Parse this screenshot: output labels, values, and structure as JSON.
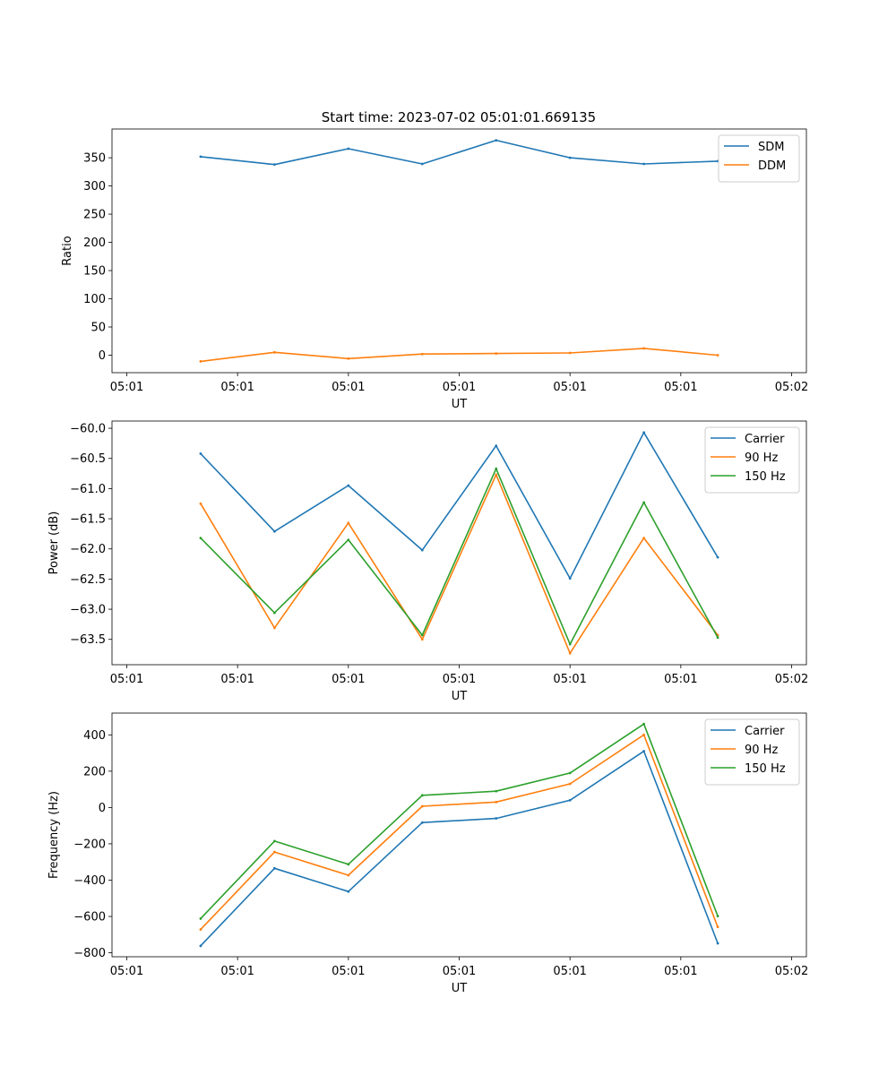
{
  "figure": {
    "title": "Start time: 2023-07-02 05:01:01.669135"
  },
  "chart_data": [
    {
      "type": "line",
      "title": "Start time: 2023-07-02 05:01:01.669135",
      "xlabel": "UT",
      "ylabel": "Ratio",
      "x": [
        0.5,
        1.0,
        1.5,
        2.0,
        2.5,
        3.0,
        3.5,
        4.0
      ],
      "xlim": [
        -0.1,
        4.6
      ],
      "xtick_positions": [
        0,
        0.75,
        1.5,
        2.25,
        3.0,
        3.75,
        4.5
      ],
      "xtick_labels": [
        "05:01",
        "05:01",
        "05:01",
        "05:01",
        "05:01",
        "05:01",
        "05:02"
      ],
      "ylim": [
        -31,
        401
      ],
      "yticks": [
        0,
        50,
        100,
        150,
        200,
        250,
        300,
        350
      ],
      "ytick_labels": [
        "0",
        "50",
        "100",
        "150",
        "200",
        "250",
        "300",
        "350"
      ],
      "legend": "top-right",
      "series": [
        {
          "name": "SDM",
          "color": "#1f77b4",
          "values": [
            352,
            338,
            366,
            339,
            381,
            350,
            339,
            344
          ]
        },
        {
          "name": "DDM",
          "color": "#ff7f0e",
          "values": [
            -11,
            5,
            -6,
            2,
            3,
            4,
            12,
            0
          ]
        }
      ]
    },
    {
      "type": "line",
      "title": "",
      "xlabel": "UT",
      "ylabel": "Power (dB)",
      "x": [
        0.5,
        1.0,
        1.5,
        2.0,
        2.5,
        3.0,
        3.5,
        4.0
      ],
      "xlim": [
        -0.1,
        4.6
      ],
      "xtick_positions": [
        0,
        0.75,
        1.5,
        2.25,
        3.0,
        3.75,
        4.5
      ],
      "xtick_labels": [
        "05:01",
        "05:01",
        "05:01",
        "05:01",
        "05:01",
        "05:01",
        "05:02"
      ],
      "ylim": [
        -63.92,
        -59.88
      ],
      "yticks": [
        -63.5,
        -63.0,
        -62.5,
        -62.0,
        -61.5,
        -61.0,
        -60.5,
        -60.0
      ],
      "ytick_labels": [
        "−63.5",
        "−63.0",
        "−62.5",
        "−62.0",
        "−61.5",
        "−61.0",
        "−60.5",
        "−60.0"
      ],
      "legend": "top-right",
      "series": [
        {
          "name": "Carrier",
          "color": "#1f77b4",
          "values": [
            -60.42,
            -61.71,
            -60.95,
            -62.02,
            -60.29,
            -62.49,
            -60.07,
            -62.14
          ]
        },
        {
          "name": "90 Hz",
          "color": "#ff7f0e",
          "values": [
            -61.25,
            -63.31,
            -61.57,
            -63.5,
            -60.77,
            -63.73,
            -61.82,
            -63.43
          ]
        },
        {
          "name": "150 Hz",
          "color": "#2ca02c",
          "values": [
            -61.82,
            -63.06,
            -61.85,
            -63.43,
            -60.67,
            -63.58,
            -61.23,
            -63.47
          ]
        }
      ]
    },
    {
      "type": "line",
      "title": "",
      "xlabel": "UT",
      "ylabel": "Frequency (Hz)",
      "x": [
        0.5,
        1.0,
        1.5,
        2.0,
        2.5,
        3.0,
        3.5,
        4.0
      ],
      "xlim": [
        -0.1,
        4.6
      ],
      "xtick_positions": [
        0,
        0.75,
        1.5,
        2.25,
        3.0,
        3.75,
        4.5
      ],
      "xtick_labels": [
        "05:01",
        "05:01",
        "05:01",
        "05:01",
        "05:01",
        "05:01",
        "05:02"
      ],
      "ylim": [
        -822,
        520
      ],
      "yticks": [
        -800,
        -600,
        -400,
        -200,
        0,
        200,
        400
      ],
      "ytick_labels": [
        "−800",
        "−600",
        "−400",
        "−200",
        "0",
        "200",
        "400"
      ],
      "legend": "top-right",
      "series": [
        {
          "name": "Carrier",
          "color": "#1f77b4",
          "values": [
            -762,
            -335,
            -463,
            -83,
            -60,
            40,
            310,
            -748
          ]
        },
        {
          "name": "90 Hz",
          "color": "#ff7f0e",
          "values": [
            -672,
            -245,
            -373,
            7,
            30,
            130,
            400,
            -658
          ]
        },
        {
          "name": "150 Hz",
          "color": "#2ca02c",
          "values": [
            -612,
            -185,
            -313,
            67,
            90,
            190,
            460,
            -598
          ]
        }
      ]
    }
  ]
}
